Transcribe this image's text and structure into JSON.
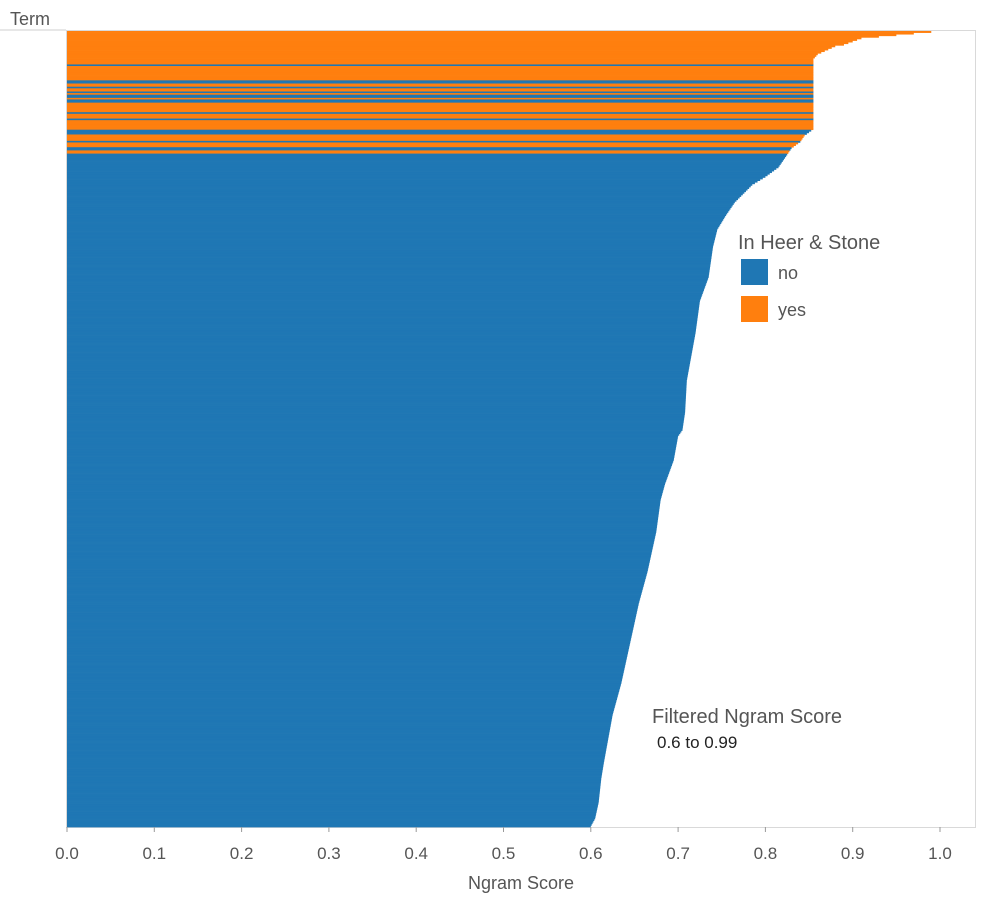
{
  "chart_data": {
    "type": "bar",
    "orientation": "horizontal",
    "sorted": "descending",
    "row_axis_label": "Term",
    "xlabel": "Ngram Score",
    "xlim": [
      0,
      1.0
    ],
    "xticks": [
      "0.0",
      "0.1",
      "0.2",
      "0.3",
      "0.4",
      "0.5",
      "0.6",
      "0.7",
      "0.8",
      "0.9",
      "1.0"
    ],
    "grid": false,
    "legend": {
      "title": "In Heer & Stone",
      "placement": "right",
      "items": [
        {
          "label": "no",
          "color": "#1f77b4"
        },
        {
          "label": "yes",
          "color": "#ff7f0e"
        }
      ]
    },
    "filter": {
      "title": "Filtered Ngram Score",
      "value": "0.6 to 0.99"
    },
    "colors": {
      "no": "#1f77b4",
      "yes": "#ff7f0e"
    },
    "term_count": 500,
    "series": [
      {
        "name": "yes",
        "segments": [
          {
            "term_from": 1,
            "term_to": 2,
            "score_from": 0.99,
            "score_to": 0.97
          },
          {
            "term_from": 3,
            "term_to": 9,
            "score_from": 0.95,
            "score_to": 0.89
          },
          {
            "term_from": 10,
            "term_to": 18,
            "score_from": 0.88,
            "score_to": 0.855
          },
          {
            "term_from": 19,
            "term_to": 21,
            "score_from": 0.855,
            "score_to": 0.855
          },
          {
            "term_from": 23,
            "term_to": 31,
            "score_from": 0.855,
            "score_to": 0.855
          },
          {
            "term_from": 34,
            "term_to": 35,
            "score_from": 0.855,
            "score_to": 0.855
          },
          {
            "term_from": 37,
            "term_to": 38,
            "score_from": 0.855,
            "score_to": 0.855
          },
          {
            "term_from": 40,
            "term_to": 40,
            "score_from": 0.855,
            "score_to": 0.855
          },
          {
            "term_from": 43,
            "term_to": 43,
            "score_from": 0.855,
            "score_to": 0.855
          },
          {
            "term_from": 46,
            "term_to": 51,
            "score_from": 0.855,
            "score_to": 0.855
          },
          {
            "term_from": 53,
            "term_to": 55,
            "score_from": 0.855,
            "score_to": 0.855
          },
          {
            "term_from": 57,
            "term_to": 62,
            "score_from": 0.855,
            "score_to": 0.855
          },
          {
            "term_from": 66,
            "term_to": 69,
            "score_from": 0.845,
            "score_to": 0.84
          },
          {
            "term_from": 71,
            "term_to": 73,
            "score_from": 0.835,
            "score_to": 0.83
          },
          {
            "term_from": 76,
            "term_to": 77,
            "score_from": 0.825,
            "score_to": 0.825
          }
        ]
      },
      {
        "name": "no",
        "segments": [
          {
            "term_from": 20,
            "term_to": 500,
            "score_from": 0.855,
            "score_to": 0.6
          },
          {
            "term_from": 78,
            "term_to": 500,
            "score_from": 0.825,
            "score_to": 0.6
          }
        ]
      }
    ],
    "profile": [
      [
        1,
        0.99
      ],
      [
        2,
        0.97
      ],
      [
        3,
        0.95
      ],
      [
        5,
        0.91
      ],
      [
        9,
        0.89
      ],
      [
        10,
        0.88
      ],
      [
        15,
        0.86
      ],
      [
        18,
        0.855
      ],
      [
        62,
        0.855
      ],
      [
        66,
        0.845
      ],
      [
        70,
        0.84
      ],
      [
        74,
        0.83
      ],
      [
        78,
        0.825
      ],
      [
        86,
        0.815
      ],
      [
        92,
        0.8
      ],
      [
        97,
        0.785
      ],
      [
        108,
        0.765
      ],
      [
        116,
        0.755
      ],
      [
        125,
        0.745
      ],
      [
        136,
        0.74
      ],
      [
        155,
        0.735
      ],
      [
        170,
        0.725
      ],
      [
        190,
        0.72
      ],
      [
        205,
        0.715
      ],
      [
        220,
        0.71
      ],
      [
        240,
        0.708
      ],
      [
        251,
        0.705
      ],
      [
        255,
        0.7
      ],
      [
        270,
        0.695
      ],
      [
        285,
        0.685
      ],
      [
        295,
        0.68
      ],
      [
        315,
        0.675
      ],
      [
        340,
        0.665
      ],
      [
        360,
        0.655
      ],
      [
        385,
        0.645
      ],
      [
        410,
        0.635
      ],
      [
        430,
        0.625
      ],
      [
        445,
        0.62
      ],
      [
        460,
        0.615
      ],
      [
        470,
        0.612
      ],
      [
        485,
        0.609
      ],
      [
        495,
        0.605
      ],
      [
        500,
        0.6
      ]
    ]
  }
}
